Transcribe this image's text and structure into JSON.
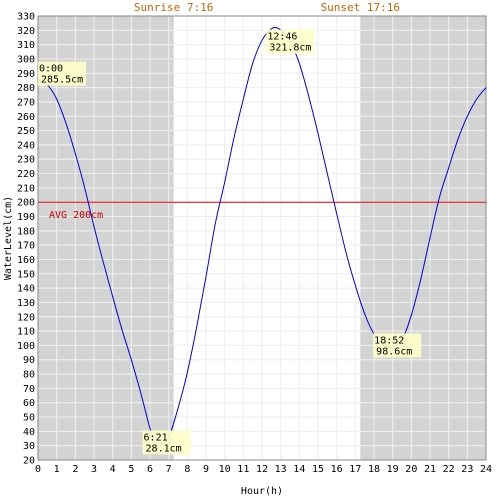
{
  "chart_data": {
    "type": "line",
    "xlabel": "Hour(h)",
    "ylabel": "WaterLevel(cm)",
    "xlim": [
      0,
      24
    ],
    "ylim": [
      20,
      330
    ],
    "x_ticks": [
      0,
      1,
      2,
      3,
      4,
      5,
      6,
      7,
      8,
      9,
      10,
      11,
      12,
      13,
      14,
      15,
      16,
      17,
      18,
      19,
      20,
      21,
      22,
      23,
      24
    ],
    "y_ticks": [
      20,
      30,
      40,
      50,
      60,
      70,
      80,
      90,
      100,
      110,
      120,
      130,
      140,
      150,
      160,
      170,
      180,
      190,
      200,
      210,
      220,
      230,
      240,
      250,
      260,
      270,
      280,
      290,
      300,
      310,
      320,
      330
    ],
    "grid": true,
    "sunrise": {
      "label": "Sunrise 7:16",
      "hour": 7.267
    },
    "sunset": {
      "label": "Sunset 17:16",
      "hour": 17.267
    },
    "average": {
      "label": "AVG 200cm",
      "value": 200
    },
    "extrema": [
      {
        "time": "0:00",
        "level": "285.5cm",
        "hour": 0.0,
        "value": 285.5
      },
      {
        "time": "6:21",
        "level": "28.1cm",
        "hour": 6.35,
        "value": 28.1
      },
      {
        "time": "12:46",
        "level": "321.8cm",
        "hour": 12.767,
        "value": 321.8
      },
      {
        "time": "18:52",
        "level": "98.6cm",
        "hour": 18.867,
        "value": 98.6
      }
    ],
    "series": [
      {
        "color": "#0000dd",
        "x": [
          0,
          0.5,
          1,
          1.5,
          2,
          2.5,
          3,
          3.5,
          4,
          4.5,
          5,
          5.5,
          6,
          6.35,
          6.5,
          7,
          7.5,
          8,
          8.5,
          9,
          9.5,
          10,
          10.5,
          11,
          11.5,
          12,
          12.5,
          12.767,
          13,
          13.5,
          14,
          14.5,
          15,
          15.5,
          16,
          16.5,
          17,
          17.5,
          18,
          18.5,
          18.867,
          19,
          19.5,
          20,
          20.5,
          21,
          21.5,
          22,
          22.5,
          23,
          23.5,
          24
        ],
        "y": [
          285.5,
          282,
          272,
          255,
          234,
          210,
          183,
          158,
          134,
          111,
          90,
          67,
          42,
          28.1,
          29,
          36,
          56,
          81,
          113,
          148,
          185,
          214,
          245,
          272,
          297,
          313,
          321,
          321.8,
          320,
          312,
          297,
          274,
          248,
          220,
          192,
          165,
          142,
          122,
          108,
          101,
          98.6,
          99,
          104,
          121,
          146,
          175,
          203,
          224,
          244,
          260,
          272,
          280
        ]
      }
    ]
  }
}
